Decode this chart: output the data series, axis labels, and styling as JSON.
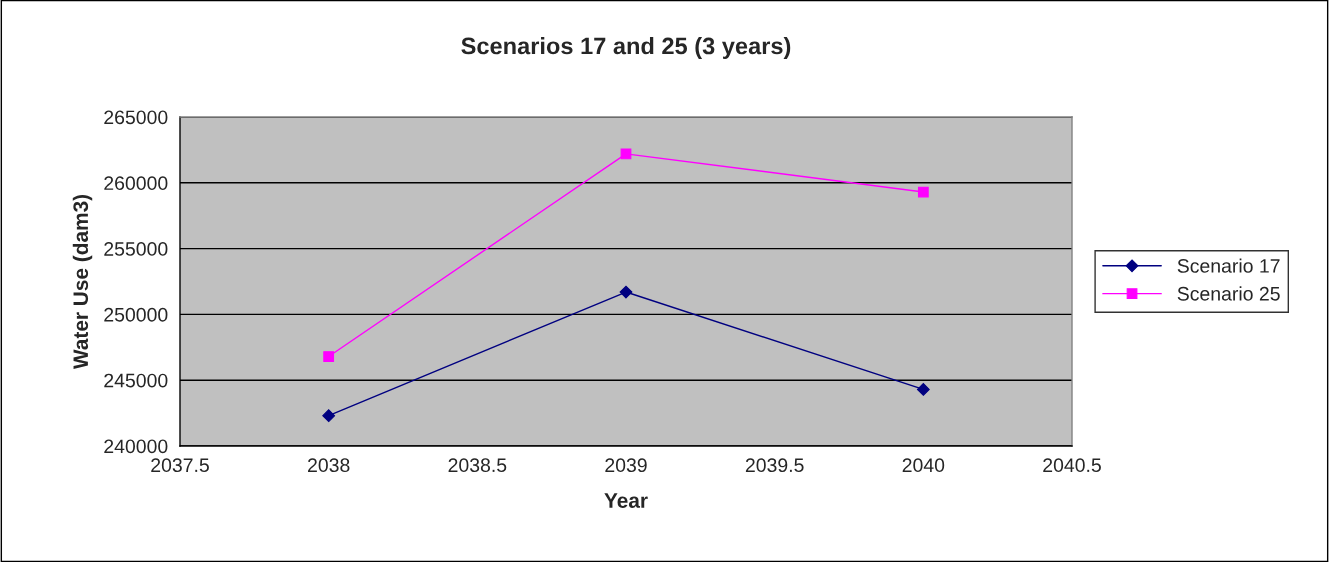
{
  "chart_data": {
    "type": "line",
    "title": "Scenarios 17 and 25 (3 years)",
    "xlabel": "Year",
    "ylabel": "Water Use (dam3)",
    "x": [
      2038,
      2039,
      2040
    ],
    "series": [
      {
        "name": "Scenario 17",
        "color": "#000080",
        "marker": "diamond",
        "values": [
          242300,
          251700,
          244300
        ]
      },
      {
        "name": "Scenario 25",
        "color": "#ff00ff",
        "marker": "square",
        "values": [
          246800,
          262200,
          259300
        ]
      }
    ],
    "xlim": [
      2037.5,
      2040.5
    ],
    "xticks": [
      2037.5,
      2038,
      2038.5,
      2039,
      2039.5,
      2040,
      2040.5
    ],
    "ylim": [
      240000,
      265000
    ],
    "yticks": [
      240000,
      245000,
      250000,
      255000,
      260000,
      265000
    ],
    "grid": "y",
    "legend": "right",
    "line_style": "solid"
  }
}
